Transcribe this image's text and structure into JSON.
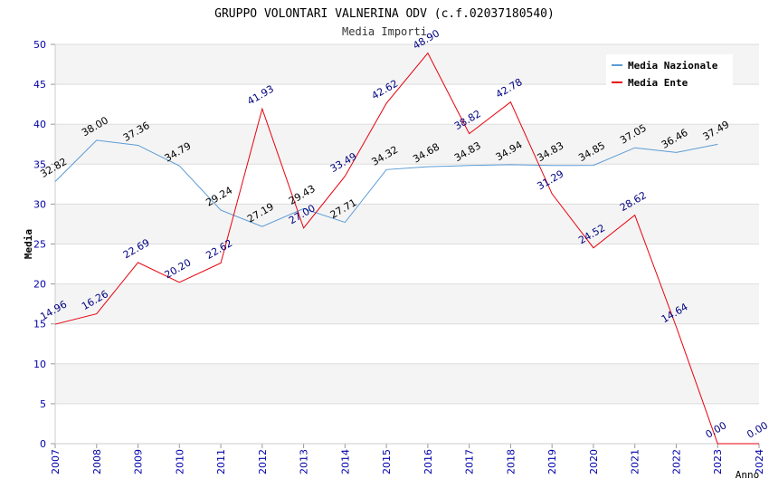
{
  "chart_data": {
    "type": "line",
    "title": "GRUPPO VOLONTARI VALNERINA ODV (c.f.02037180540)",
    "subtitle": "Media Importi",
    "xlabel": "Anno",
    "ylabel": "Media",
    "ylim": [
      0,
      50
    ],
    "yticks": [
      0,
      5,
      10,
      15,
      20,
      25,
      30,
      35,
      40,
      45,
      50
    ],
    "x": [
      "2007",
      "2008",
      "2009",
      "2010",
      "2011",
      "2012",
      "2013",
      "2014",
      "2015",
      "2016",
      "2017",
      "2018",
      "2019",
      "2020",
      "2021",
      "2022",
      "2023",
      "2024"
    ],
    "grid": true,
    "legend_position": "top-right",
    "series": [
      {
        "name": "Media Nazionale",
        "color": "#5b9bd5",
        "values": [
          32.82,
          38.0,
          37.36,
          34.79,
          29.24,
          27.19,
          29.43,
          27.71,
          34.32,
          34.68,
          34.83,
          34.94,
          34.83,
          34.85,
          37.05,
          36.46,
          37.49,
          null
        ],
        "labels": [
          "32.82",
          "38.00",
          "37.36",
          "34.79",
          "29.24",
          "27.19",
          "29.43",
          "27.71",
          "34.32",
          "34.68",
          "34.83",
          "34.94",
          "34.83",
          "34.85",
          "37.05",
          "36.46",
          "37.49",
          ""
        ]
      },
      {
        "name": "Media Ente",
        "color": "#e8000b",
        "values": [
          14.96,
          16.26,
          22.69,
          20.2,
          22.62,
          41.93,
          27.0,
          33.49,
          42.62,
          48.9,
          38.82,
          42.78,
          31.29,
          24.52,
          28.62,
          14.64,
          0.0,
          0.0
        ],
        "labels": [
          "14.96",
          "16.26",
          "22.69",
          "20.20",
          "22.62",
          "41.93",
          "27.00",
          "33.49",
          "42.62",
          "48.90",
          "38.82",
          "42.78",
          "31.29",
          "24.52",
          "28.62",
          "14.64",
          "0.00",
          "0.00"
        ]
      }
    ]
  }
}
